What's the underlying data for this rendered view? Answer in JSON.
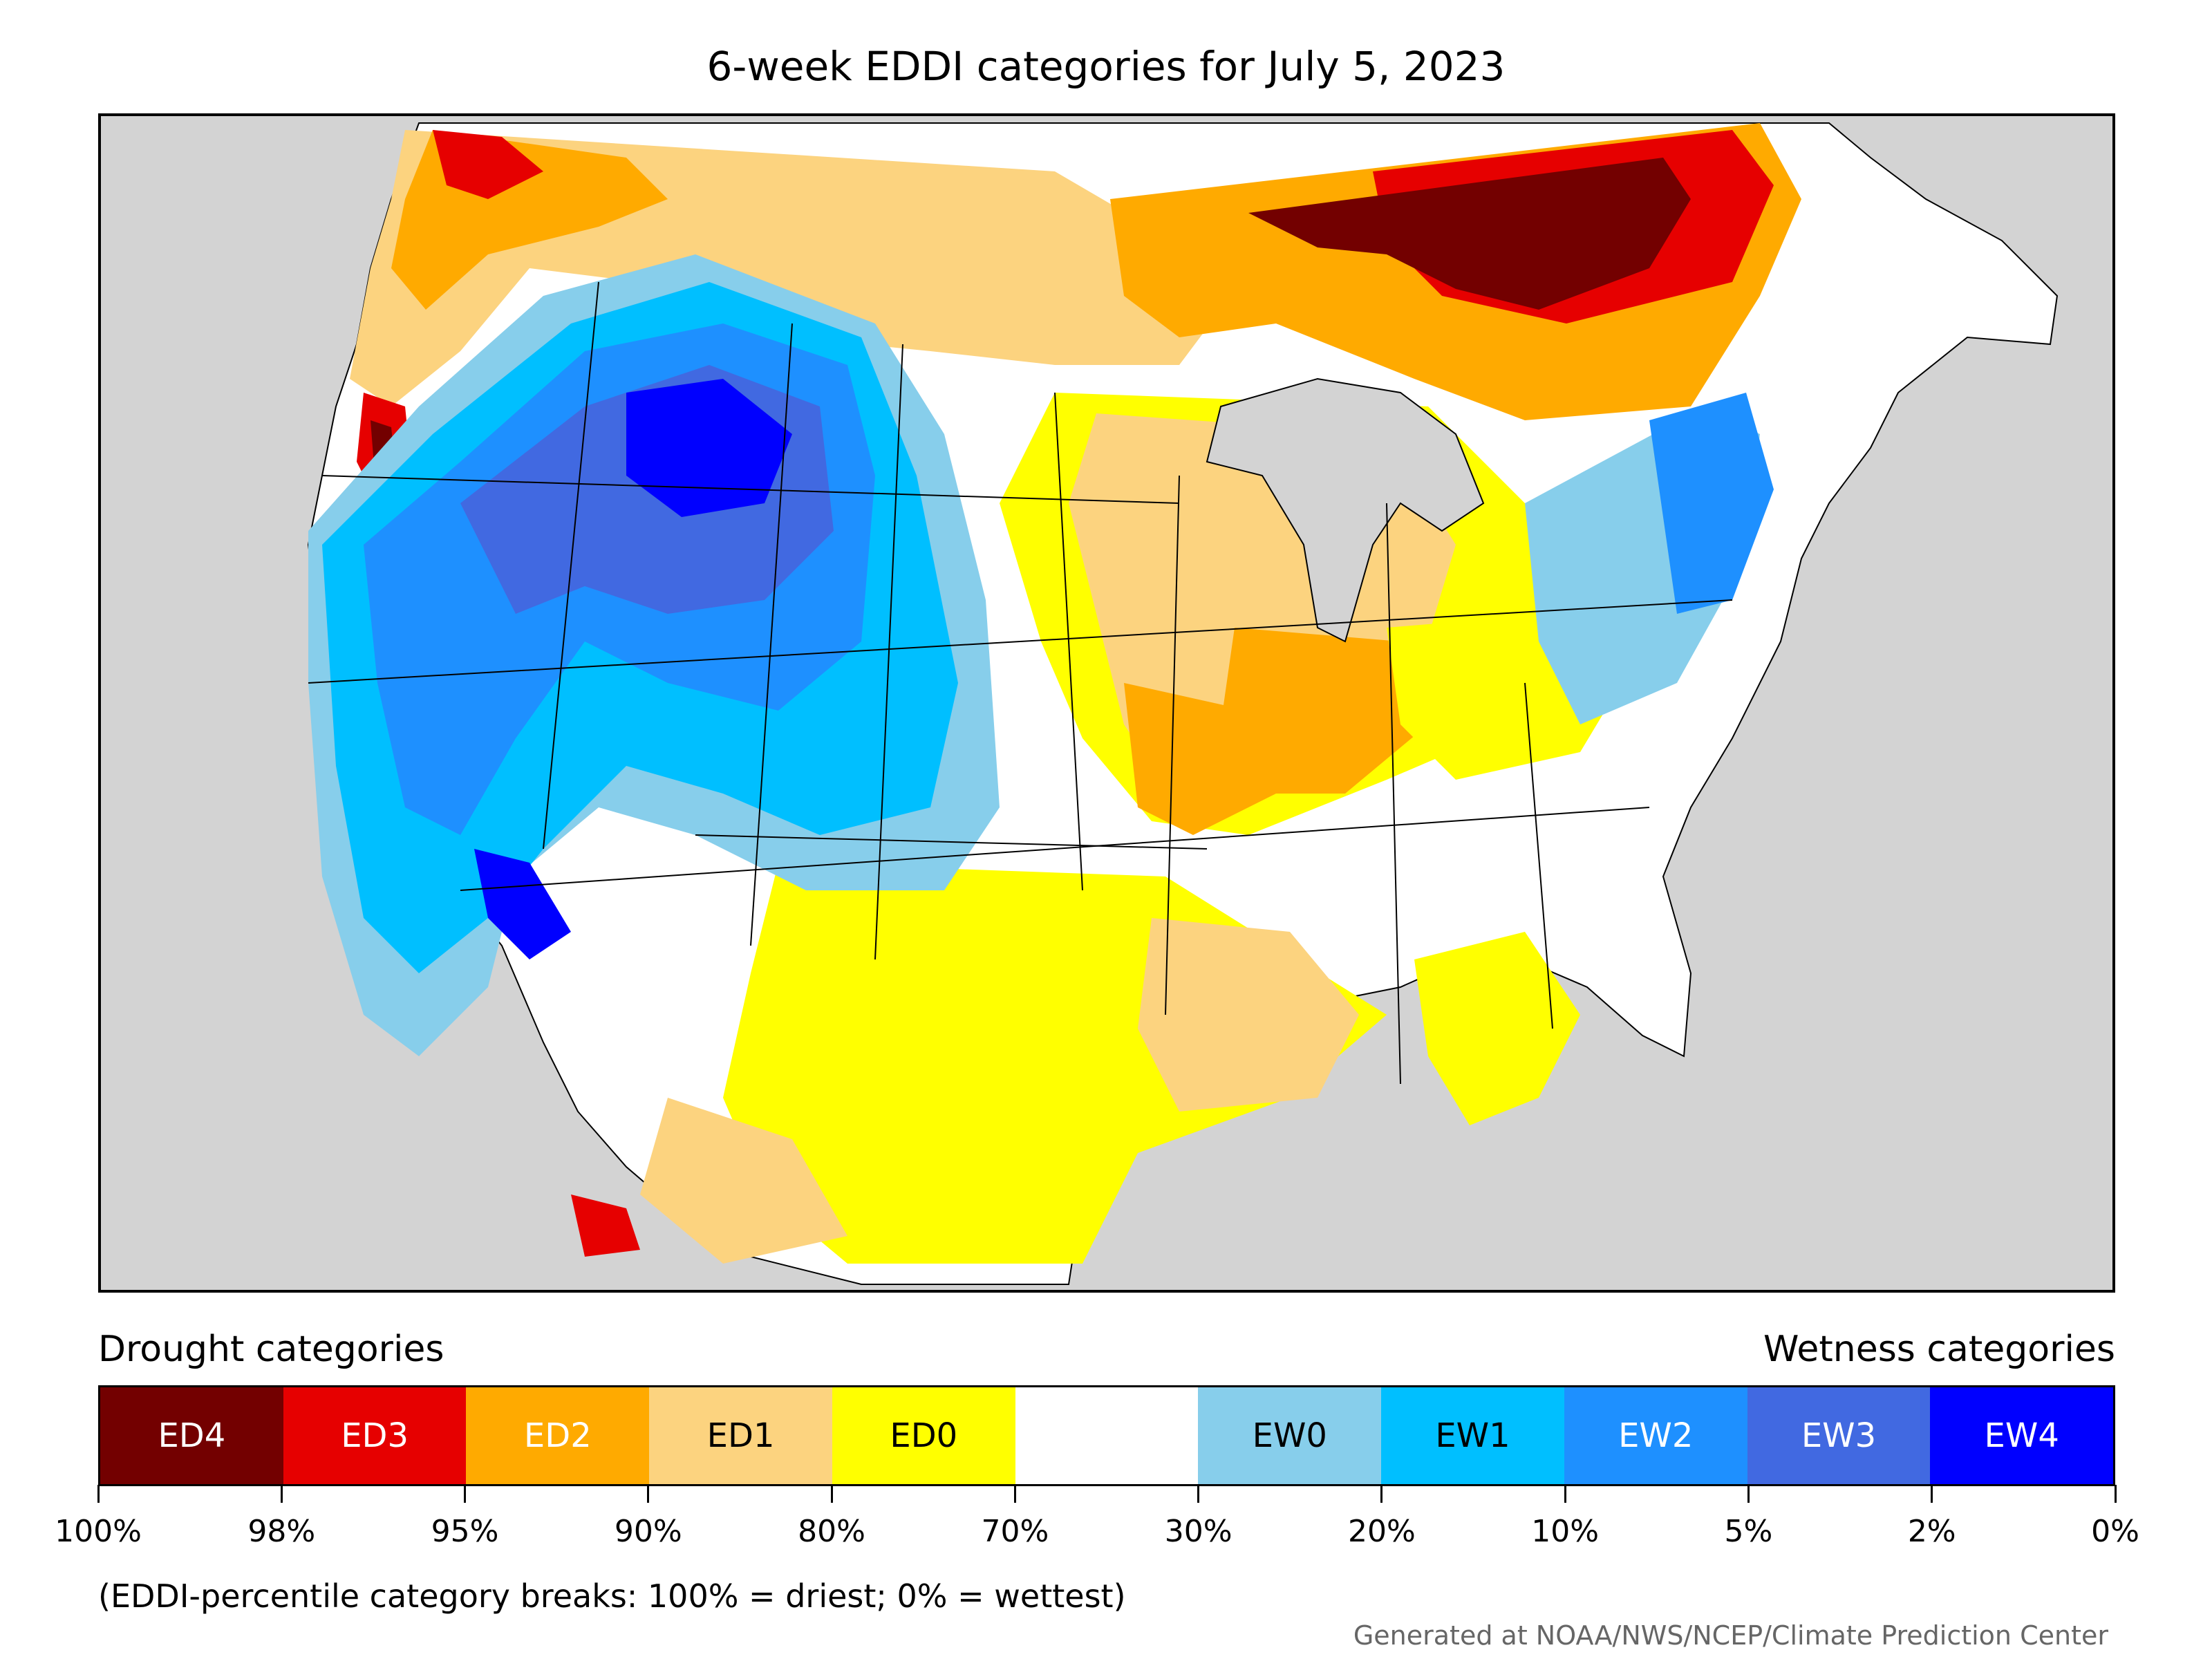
{
  "title": "6-week EDDI categories for July 5, 2023",
  "legend": {
    "left_heading": "Drought categories",
    "right_heading": "Wetness categories",
    "categories": [
      {
        "label": "ED4",
        "color": "#730000",
        "text_color": "#ffffff"
      },
      {
        "label": "ED3",
        "color": "#e60000",
        "text_color": "#ffffff"
      },
      {
        "label": "ED2",
        "color": "#ffaa00",
        "text_color": "#ffffff"
      },
      {
        "label": "ED1",
        "color": "#fcd37f",
        "text_color": "#000000"
      },
      {
        "label": "ED0",
        "color": "#ffff00",
        "text_color": "#000000"
      },
      {
        "label": "",
        "color": "#ffffff",
        "text_color": "#000000"
      },
      {
        "label": "EW0",
        "color": "#87ceeb",
        "text_color": "#000000"
      },
      {
        "label": "EW1",
        "color": "#00bfff",
        "text_color": "#000000"
      },
      {
        "label": "EW2",
        "color": "#1e90ff",
        "text_color": "#ffffff"
      },
      {
        "label": "EW3",
        "color": "#4169e1",
        "text_color": "#ffffff"
      },
      {
        "label": "EW4",
        "color": "#0000ff",
        "text_color": "#ffffff"
      }
    ],
    "tick_labels": [
      "100%",
      "98%",
      "95%",
      "90%",
      "80%",
      "70%",
      "30%",
      "20%",
      "10%",
      "5%",
      "2%",
      "0%"
    ]
  },
  "footnote": "(EDDI-percentile category breaks: 100% = driest; 0% = wettest)",
  "credit": "Generated at NOAA/NWS/NCEP/Climate Prediction Center",
  "colors": {
    "ocean_and_outside": "#d3d3d3",
    "neutral_land": "#ffffff",
    "boundary": "#000000"
  }
}
